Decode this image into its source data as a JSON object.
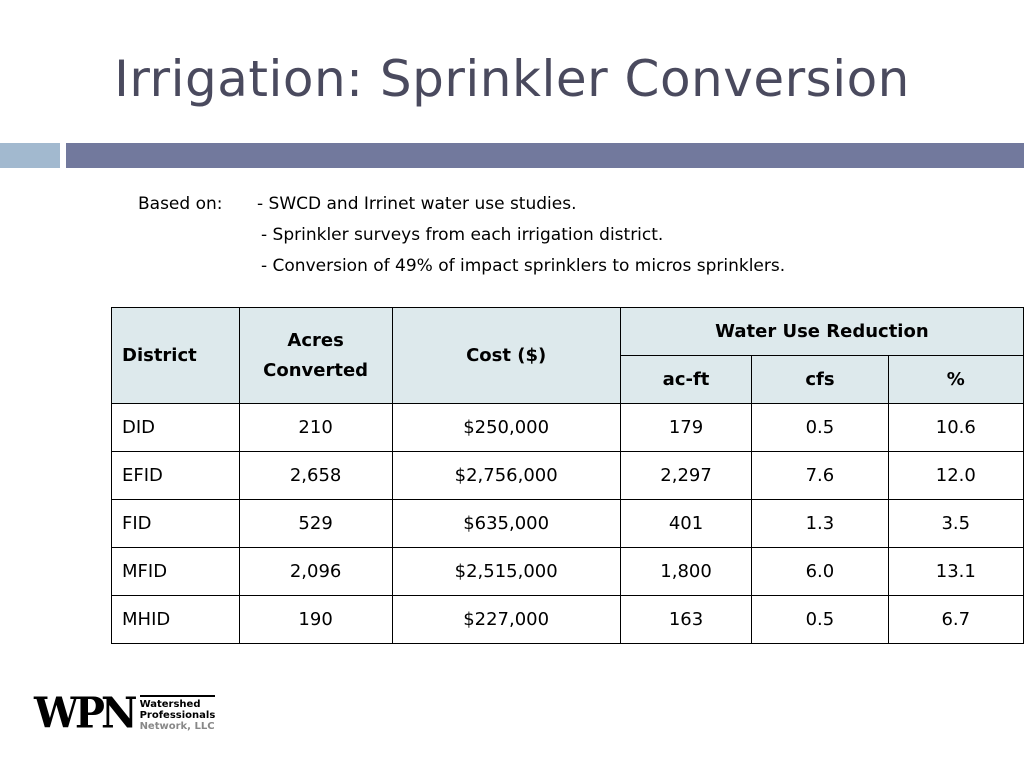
{
  "title": "Irrigation: Sprinkler Conversion",
  "based_on": {
    "label": "Based on:",
    "items": [
      "- SWCD and Irrinet water use studies.",
      "- Sprinkler surveys from each irrigation district.",
      "- Conversion of 49% of impact sprinklers to micros sprinklers."
    ]
  },
  "table": {
    "headers": {
      "district": "District",
      "acres": "Acres Converted",
      "cost": "Cost ($)",
      "wur": "Water Use Reduction",
      "acft": "ac-ft",
      "cfs": "cfs",
      "pct": "%"
    },
    "rows": [
      [
        "DID",
        "210",
        "$250,000",
        "179",
        "0.5",
        "10.6"
      ],
      [
        "EFID",
        "2,658",
        "$2,756,000",
        "2,297",
        "7.6",
        "12.0"
      ],
      [
        "FID",
        "529",
        "$635,000",
        "401",
        "1.3",
        "3.5"
      ],
      [
        "MFID",
        "2,096",
        "$2,515,000",
        "1,800",
        "6.0",
        "13.1"
      ],
      [
        "MHID",
        "190",
        "$227,000",
        "163",
        "0.5",
        "6.7"
      ]
    ]
  },
  "logo": {
    "mark": "WPN",
    "line1": "Watershed",
    "line2": "Professionals",
    "line3": "Network, LLC"
  },
  "colors": {
    "accent_light": "#a2b9cf",
    "accent_dark": "#72799d",
    "header_bg": "#dde9ec"
  }
}
